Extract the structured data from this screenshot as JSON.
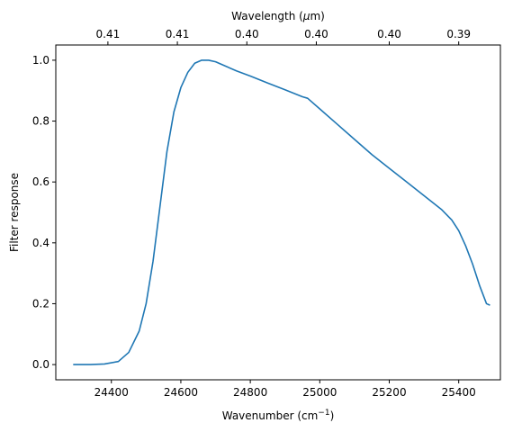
{
  "chart_data": {
    "type": "line",
    "title": "",
    "xlabel": "Wavenumber (cm",
    "xlabel_sup": "−1",
    "xlabel_tail": ")",
    "ylabel": "Filter response",
    "top_xlabel": "Wavelength (",
    "top_xlabel_mu": "μ",
    "top_xlabel_tail": "m)",
    "xlim": [
      24240,
      25520
    ],
    "ylim": [
      -0.05,
      1.05
    ],
    "x_ticks": [
      24400,
      24600,
      24800,
      25000,
      25200,
      25400
    ],
    "x_tick_labels": [
      "24400",
      "24600",
      "24800",
      "25000",
      "25200",
      "25400"
    ],
    "y_ticks": [
      0.0,
      0.2,
      0.4,
      0.6,
      0.8,
      1.0
    ],
    "y_tick_labels": [
      "0.0",
      "0.2",
      "0.4",
      "0.6",
      "0.8",
      "1.0"
    ],
    "top_ticks_wavenumber": [
      24390,
      24590,
      24790,
      24990,
      25200,
      25400
    ],
    "top_tick_labels": [
      "0.41",
      "0.41",
      "0.40",
      "0.40",
      "0.40",
      "0.39"
    ],
    "grid": false,
    "series": [
      {
        "color": "#1f77b4",
        "x": [
          24290,
          24340,
          24380,
          24420,
          24450,
          24480,
          24500,
          24520,
          24540,
          24560,
          24580,
          24600,
          24620,
          24640,
          24660,
          24680,
          24700,
          24720,
          24760,
          24800,
          24850,
          24900,
          24950,
          24965,
          25000,
          25050,
          25100,
          25150,
          25200,
          25250,
          25300,
          25350,
          25380,
          25400,
          25420,
          25440,
          25460,
          25480,
          25490
        ],
        "y": [
          0.0,
          0.0,
          0.002,
          0.01,
          0.04,
          0.11,
          0.2,
          0.34,
          0.52,
          0.7,
          0.83,
          0.91,
          0.96,
          0.99,
          1.0,
          1.0,
          0.995,
          0.985,
          0.965,
          0.948,
          0.925,
          0.903,
          0.88,
          0.875,
          0.84,
          0.79,
          0.74,
          0.69,
          0.645,
          0.6,
          0.555,
          0.51,
          0.475,
          0.44,
          0.39,
          0.33,
          0.26,
          0.2,
          0.195
        ]
      }
    ]
  }
}
